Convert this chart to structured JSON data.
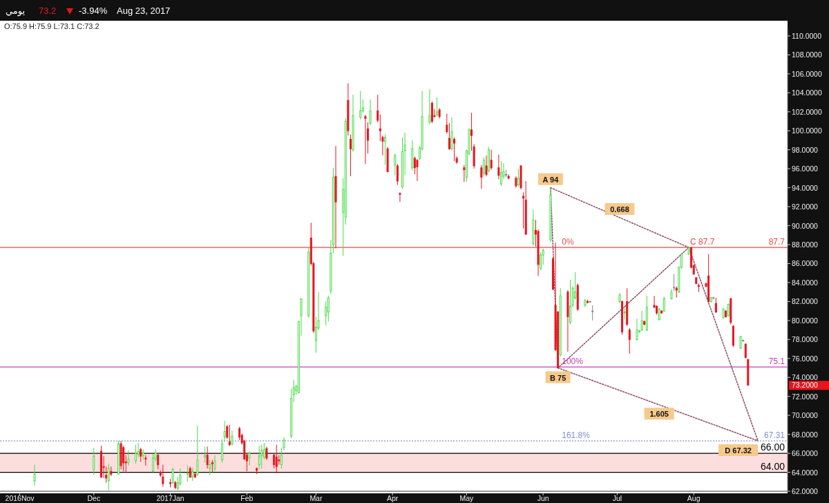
{
  "chart_data": {
    "type": "candlestick",
    "title": "يومي",
    "subtitle": "O:75.9  H:75.9  L:73.1  C:73.2",
    "annotations": [
      "73.2",
      "-3.94%",
      "Aug 23, 2017",
      "73.2000",
      {
        "text": "A 94",
        "x": "2017-06-04",
        "y": 94
      },
      {
        "text": "B 75",
        "x": "2017-06-07",
        "y": 75
      },
      {
        "text": "C 87.7",
        "x": "2017-07-30",
        "y": 87.7
      },
      {
        "text": "D 67.32",
        "x": "2017-08-27",
        "y": 67.32
      },
      {
        "text": "0.668",
        "x": "2017-07-02",
        "y": 90.85
      },
      {
        "text": "1.605",
        "x": "2017-07-18",
        "y": 71.16
      },
      {
        "text": "0%",
        "x": "2017-06-08",
        "y": 87.7
      },
      {
        "text": "100%",
        "x": "2017-06-08",
        "y": 75.1
      },
      {
        "text": "161.8%",
        "x": "2017-06-08",
        "y": 67.31
      }
    ],
    "x": [
      "2016-11-07",
      "2016-12-01",
      "2016-12-04",
      "2016-12-05",
      "2016-12-06",
      "2016-12-07",
      "2016-12-08",
      "2016-12-11",
      "2016-12-12",
      "2016-12-13",
      "2016-12-14",
      "2016-12-15",
      "2016-12-18",
      "2016-12-19",
      "2016-12-20",
      "2016-12-21",
      "2016-12-22",
      "2016-12-25",
      "2016-12-26",
      "2016-12-27",
      "2016-12-28",
      "2016-12-29",
      "2017-01-01",
      "2017-01-02",
      "2017-01-03",
      "2017-01-04",
      "2017-01-05",
      "2017-01-08",
      "2017-01-09",
      "2017-01-10",
      "2017-01-11",
      "2017-01-12",
      "2017-01-15",
      "2017-01-16",
      "2017-01-17",
      "2017-01-18",
      "2017-01-19",
      "2017-01-22",
      "2017-01-23",
      "2017-01-24",
      "2017-01-25",
      "2017-01-26",
      "2017-01-29",
      "2017-01-30",
      "2017-01-31",
      "2017-02-01",
      "2017-02-02",
      "2017-02-05",
      "2017-02-06",
      "2017-02-07",
      "2017-02-08",
      "2017-02-09",
      "2017-02-12",
      "2017-02-13",
      "2017-02-14",
      "2017-02-15",
      "2017-02-16",
      "2017-02-19",
      "2017-02-20",
      "2017-02-21",
      "2017-02-22",
      "2017-02-23",
      "2017-02-26",
      "2017-02-27",
      "2017-02-28",
      "2017-03-01",
      "2017-03-02",
      "2017-03-05",
      "2017-03-06",
      "2017-03-07",
      "2017-03-08",
      "2017-03-09",
      "2017-03-12",
      "2017-03-13",
      "2017-03-14",
      "2017-03-15",
      "2017-03-16",
      "2017-03-19",
      "2017-03-20",
      "2017-03-21",
      "2017-03-22",
      "2017-03-23",
      "2017-03-26",
      "2017-03-27",
      "2017-03-28",
      "2017-03-29",
      "2017-03-30",
      "2017-04-02",
      "2017-04-03",
      "2017-04-04",
      "2017-04-05",
      "2017-04-06",
      "2017-04-09",
      "2017-04-10",
      "2017-04-11",
      "2017-04-12",
      "2017-04-13",
      "2017-04-16",
      "2017-04-17",
      "2017-04-18",
      "2017-04-19",
      "2017-04-20",
      "2017-04-23",
      "2017-04-24",
      "2017-04-25",
      "2017-04-26",
      "2017-04-27",
      "2017-04-30",
      "2017-05-01",
      "2017-05-02",
      "2017-05-03",
      "2017-05-04",
      "2017-05-07",
      "2017-05-08",
      "2017-05-09",
      "2017-05-10",
      "2017-05-11",
      "2017-05-14",
      "2017-05-15",
      "2017-05-16",
      "2017-05-17",
      "2017-05-18",
      "2017-05-21",
      "2017-05-22",
      "2017-05-23",
      "2017-05-24",
      "2017-05-25",
      "2017-05-28",
      "2017-05-29",
      "2017-05-30",
      "2017-05-31",
      "2017-06-01",
      "2017-06-04",
      "2017-06-05",
      "2017-06-06",
      "2017-06-07",
      "2017-06-08",
      "2017-06-11",
      "2017-06-12",
      "2017-06-13",
      "2017-06-14",
      "2017-06-15",
      "2017-06-18",
      "2017-06-19",
      "2017-06-20",
      "2017-06-21",
      "2017-07-02",
      "2017-07-03",
      "2017-07-04",
      "2017-07-05",
      "2017-07-06",
      "2017-07-09",
      "2017-07-10",
      "2017-07-11",
      "2017-07-12",
      "2017-07-13",
      "2017-07-16",
      "2017-07-17",
      "2017-07-18",
      "2017-07-19",
      "2017-07-20",
      "2017-07-23",
      "2017-07-24",
      "2017-07-25",
      "2017-07-26",
      "2017-07-27",
      "2017-07-30",
      "2017-07-31",
      "2017-08-01",
      "2017-08-02",
      "2017-08-03",
      "2017-08-06",
      "2017-08-07",
      "2017-08-08",
      "2017-08-09",
      "2017-08-10",
      "2017-08-13",
      "2017-08-14",
      "2017-08-15",
      "2017-08-16",
      "2017-08-17",
      "2017-08-20",
      "2017-08-21",
      "2017-08-22",
      "2017-08-23"
    ],
    "ohlc": [
      [
        63.1,
        64.8,
        62.6,
        63.8
      ],
      [
        64.3,
        66.6,
        63.7,
        65.7
      ],
      [
        66.2,
        66.8,
        63.4,
        63.5
      ],
      [
        64.6,
        65.7,
        63.4,
        64.5
      ],
      [
        63.7,
        64.6,
        62.9,
        63.4
      ],
      [
        63.1,
        64.9,
        62.1,
        64.4
      ],
      [
        64.1,
        64.6,
        63.6,
        63.8
      ],
      [
        63.8,
        67.3,
        63.8,
        67.0
      ],
      [
        67.0,
        67.3,
        64.3,
        64.7
      ],
      [
        66.6,
        66.8,
        64.1,
        65.0
      ],
      [
        65.1,
        65.8,
        64.0,
        65.0
      ],
      [
        65.0,
        66.3,
        64.7,
        65.4
      ],
      [
        65.2,
        66.9,
        64.9,
        66.0
      ],
      [
        65.9,
        67.1,
        65.6,
        66.2
      ],
      [
        66.4,
        66.6,
        65.1,
        65.7
      ],
      [
        65.8,
        66.4,
        65.3,
        66.1
      ],
      [
        65.5,
        65.8,
        64.7,
        65.4
      ],
      [
        64.1,
        65.9,
        64.0,
        65.5
      ],
      [
        65.4,
        66.4,
        65.1,
        66.1
      ],
      [
        65.8,
        66.0,
        64.3,
        64.8
      ],
      [
        64.0,
        64.2,
        63.5,
        63.7
      ],
      [
        63.5,
        64.8,
        62.5,
        62.8
      ],
      [
        62.9,
        63.3,
        62.4,
        62.8
      ],
      [
        62.9,
        64.5,
        62.8,
        64.3
      ],
      [
        62.9,
        63.1,
        62.2,
        62.4
      ],
      [
        62.3,
        63.5,
        62.1,
        62.9
      ],
      [
        62.8,
        64.4,
        62.6,
        63.7
      ],
      [
        63.8,
        64.7,
        63.0,
        63.9
      ],
      [
        64.4,
        64.6,
        63.4,
        63.5
      ],
      [
        63.5,
        64.5,
        63.1,
        64.1
      ],
      [
        63.8,
        64.0,
        63.4,
        63.5
      ],
      [
        63.8,
        68.9,
        63.6,
        65.3
      ],
      [
        65.6,
        66.7,
        65.0,
        65.8
      ],
      [
        65.8,
        66.7,
        64.4,
        64.8
      ],
      [
        64.4,
        65.3,
        63.7,
        64.8
      ],
      [
        65.0,
        65.3,
        64.0,
        64.9
      ],
      [
        64.4,
        65.8,
        64.1,
        65.2
      ],
      [
        65.3,
        67.5,
        65.0,
        67.0
      ],
      [
        67.7,
        69.4,
        67.2,
        68.3
      ],
      [
        68.8,
        69.0,
        67.5,
        67.7
      ],
      [
        67.2,
        69.0,
        66.8,
        66.9
      ],
      [
        67.0,
        68.4,
        66.8,
        67.8
      ],
      [
        68.6,
        68.8,
        67.4,
        67.7
      ],
      [
        67.9,
        68.1,
        66.9,
        67.1
      ],
      [
        67.3,
        67.4,
        65.3,
        65.4
      ],
      [
        65.8,
        66.0,
        64.1,
        65.2
      ],
      [
        65.5,
        66.2,
        64.7,
        66.0
      ],
      [
        64.4,
        64.5,
        63.8,
        64.2
      ],
      [
        64.8,
        66.8,
        64.3,
        65.7
      ],
      [
        65.8,
        66.9,
        64.4,
        66.3
      ],
      [
        65.6,
        67.1,
        65.4,
        66.4
      ],
      [
        66.5,
        66.7,
        65.3,
        65.5
      ],
      [
        65.8,
        66.0,
        64.4,
        64.8
      ],
      [
        65.6,
        66.9,
        63.9,
        64.6
      ],
      [
        65.3,
        65.8,
        64.8,
        65.2
      ],
      [
        64.8,
        66.6,
        64.4,
        65.8
      ],
      [
        66.6,
        67.7,
        66.3,
        67.4
      ],
      [
        67.8,
        72.8,
        67.6,
        71.8
      ],
      [
        72.2,
        73.7,
        71.4,
        72.9
      ],
      [
        72.6,
        73.1,
        72.2,
        73.1
      ],
      [
        72.4,
        79.9,
        72.3,
        79.9
      ],
      [
        80.5,
        82.3,
        78.4,
        82.3
      ],
      [
        80.5,
        87.7,
        80.3,
        87.2
      ],
      [
        88.7,
        90.3,
        85.8,
        86.0
      ],
      [
        86.0,
        86.2,
        78.7,
        78.9
      ],
      [
        77.9,
        80.4,
        76.6,
        79.3
      ],
      [
        79.2,
        83.0,
        79.0,
        80.0
      ],
      [
        80.5,
        82.0,
        79.5,
        81.4
      ],
      [
        80.9,
        82.6,
        79.9,
        82.4
      ],
      [
        83.1,
        88.5,
        82.8,
        87.1
      ],
      [
        88.0,
        96.1,
        87.1,
        95.1
      ],
      [
        95.2,
        98.4,
        87.6,
        92.5
      ],
      [
        91.4,
        95.0,
        86.8,
        93.8
      ],
      [
        90.9,
        101.3,
        90.1,
        101.0
      ],
      [
        103.2,
        105.0,
        99.5,
        100.0
      ],
      [
        99.1,
        99.6,
        95.2,
        98.1
      ],
      [
        98.0,
        103.8,
        97.8,
        101.6
      ],
      [
        101.4,
        104.2,
        101.2,
        102.1
      ],
      [
        102.1,
        103.3,
        101.9,
        102.4
      ],
      [
        101.5,
        101.7,
        96.5,
        101.3
      ],
      [
        100.2,
        100.9,
        97.6,
        99.0
      ],
      [
        100.8,
        103.3,
        100.6,
        102.1
      ],
      [
        102.1,
        103.8,
        100.9,
        101.1
      ],
      [
        100.2,
        101.7,
        98.9,
        100.0
      ],
      [
        99.3,
        99.5,
        97.4,
        98.9
      ],
      [
        98.9,
        99.6,
        96.4,
        99.3
      ],
      [
        98.1,
        98.3,
        95.6,
        95.7
      ],
      [
        96.4,
        97.6,
        95.3,
        97.4
      ],
      [
        96.3,
        96.5,
        94.3,
        94.7
      ],
      [
        93.4,
        93.5,
        92.5,
        93.3
      ],
      [
        94.1,
        99.3,
        93.9,
        97.8
      ],
      [
        97.9,
        99.8,
        95.3,
        98.5
      ],
      [
        96.1,
        99.0,
        95.8,
        98.1
      ],
      [
        97.1,
        97.3,
        95.4,
        96.1
      ],
      [
        96.9,
        97.0,
        94.7,
        96.2
      ],
      [
        97.1,
        98.4,
        96.9,
        98.2
      ],
      [
        98.1,
        104.2,
        97.9,
        101.5
      ],
      [
        100.9,
        104.4,
        100.7,
        101.6
      ],
      [
        102.9,
        103.1,
        100.8,
        101.0
      ],
      [
        101.6,
        102.3,
        101.4,
        101.5
      ],
      [
        101.7,
        103.5,
        101.5,
        102.0
      ],
      [
        102.2,
        102.4,
        101.3,
        101.5
      ],
      [
        100.6,
        101.8,
        99.7,
        99.9
      ],
      [
        99.2,
        100.8,
        98.0,
        98.1
      ],
      [
        98.1,
        101.4,
        97.9,
        99.9
      ],
      [
        99.1,
        99.3,
        96.8,
        98.7
      ],
      [
        97.1,
        97.3,
        96.5,
        96.7
      ],
      [
        96.1,
        96.4,
        94.6,
        95.9
      ],
      [
        95.1,
        98.0,
        94.6,
        97.9
      ],
      [
        97.6,
        100.3,
        97.4,
        100.1
      ],
      [
        100.1,
        101.9,
        97.9,
        99.5
      ],
      [
        98.3,
        98.6,
        96.0,
        96.3
      ],
      [
        96.1,
        96.4,
        93.9,
        95.1
      ],
      [
        95.5,
        97.2,
        95.2,
        96.9
      ],
      [
        96.3,
        97.4,
        95.2,
        95.4
      ],
      [
        95.8,
        98.3,
        95.6,
        98.0
      ],
      [
        96.9,
        98.0,
        95.9,
        96.1
      ],
      [
        96.1,
        97.5,
        94.9,
        95.3
      ],
      [
        94.4,
        96.8,
        94.2,
        95.6
      ],
      [
        95.2,
        96.6,
        94.9,
        95.7
      ],
      [
        95.4,
        95.9,
        95.1,
        95.4
      ],
      [
        95.2,
        95.4,
        94.9,
        95.0
      ],
      [
        95.0,
        95.2,
        94.0,
        94.2
      ],
      [
        94.3,
        96.0,
        94.1,
        95.0
      ],
      [
        96.3,
        96.4,
        93.8,
        94.0
      ],
      [
        93.1,
        93.5,
        89.7,
        92.9
      ],
      [
        92.7,
        94.7,
        89.0,
        89.1
      ],
      [
        88.1,
        91.7,
        87.9,
        90.6
      ],
      [
        89.5,
        90.6,
        87.8,
        89.1
      ],
      [
        89.4,
        89.6,
        84.7,
        85.9
      ],
      [
        85.5,
        87.2,
        85.3,
        86.9
      ],
      [
        86.9,
        87.6,
        85.9,
        87.4
      ],
      [
        88.5,
        94.0,
        88.3,
        93.2
      ],
      [
        86.5,
        86.7,
        83.2,
        83.3
      ],
      [
        81.6,
        88.2,
        76.8,
        76.9
      ],
      [
        80.9,
        81.0,
        75.0,
        75.0
      ],
      [
        76.4,
        83.4,
        76.2,
        82.6
      ],
      [
        83.0,
        83.2,
        76.7,
        80.4
      ],
      [
        79.8,
        84.3,
        79.6,
        81.5
      ],
      [
        81.6,
        83.6,
        81.4,
        83.4
      ],
      [
        82.4,
        85.1,
        82.2,
        83.0
      ],
      [
        83.7,
        83.9,
        81.0,
        81.2
      ],
      [
        81.6,
        82.3,
        81.4,
        82.1
      ],
      [
        82.0,
        82.2,
        81.8,
        81.9
      ],
      [
        82.0,
        82.1,
        81.9,
        82.0
      ],
      [
        81.0,
        81.6,
        80.0,
        81.0
      ],
      [
        82.0,
        82.9,
        81.8,
        82.7
      ],
      [
        82.0,
        82.1,
        78.5,
        78.8
      ],
      [
        80.8,
        81.4,
        80.1,
        80.9
      ],
      [
        82.0,
        83.4,
        79.4,
        79.6
      ],
      [
        79.0,
        79.2,
        76.5,
        78.0
      ],
      [
        78.0,
        80.2,
        77.9,
        79.0
      ],
      [
        78.8,
        79.0,
        78.7,
        78.9
      ],
      [
        79.0,
        81.0,
        78.9,
        80.0
      ],
      [
        79.9,
        80.0,
        79.5,
        79.6
      ],
      [
        79.0,
        82.6,
        78.9,
        81.4
      ],
      [
        81.6,
        82.6,
        81.3,
        81.4
      ],
      [
        81.5,
        81.6,
        80.6,
        80.8
      ],
      [
        80.1,
        81.3,
        80.0,
        81.2
      ],
      [
        81.0,
        81.1,
        80.7,
        80.8
      ],
      [
        81.0,
        82.5,
        80.9,
        82.3
      ],
      [
        82.3,
        83.3,
        82.2,
        83.0
      ],
      [
        83.5,
        84.9,
        83.1,
        83.5
      ],
      [
        83.4,
        83.6,
        82.4,
        83.2
      ],
      [
        83.0,
        85.7,
        82.9,
        85.6
      ],
      [
        85.6,
        87.1,
        85.5,
        87.0
      ],
      [
        87.0,
        87.7,
        86.9,
        87.7
      ],
      [
        87.7,
        87.7,
        85.5,
        85.6
      ],
      [
        85.8,
        85.9,
        84.8,
        84.9
      ],
      [
        84.5,
        84.6,
        83.8,
        83.9
      ],
      [
        83.7,
        83.9,
        83.0,
        83.6
      ],
      [
        83.9,
        84.0,
        83.5,
        83.6
      ],
      [
        84.7,
        87.0,
        81.9,
        82.0
      ],
      [
        82.0,
        82.5,
        81.9,
        82.4
      ],
      [
        82.4,
        82.5,
        82.3,
        82.4
      ],
      [
        81.8,
        82.4,
        80.8,
        80.9
      ],
      [
        80.3,
        81.3,
        80.2,
        81.2
      ],
      [
        81.0,
        81.1,
        80.3,
        80.4
      ],
      [
        80.5,
        81.8,
        80.4,
        81.7
      ],
      [
        82.3,
        82.4,
        79.6,
        79.8
      ],
      [
        79.4,
        79.5,
        77.2,
        77.4
      ],
      [
        77.1,
        78.4,
        77.0,
        78.3
      ],
      [
        77.9,
        78.0,
        77.8,
        77.9
      ],
      [
        77.5,
        77.6,
        76.0,
        76.1
      ],
      [
        75.9,
        75.9,
        73.1,
        73.2
      ]
    ],
    "series": [
      {
        "type": "line",
        "color": "#8e4a62",
        "line_style": "dotted",
        "x": [
          "2017-06-04",
          "2017-06-07",
          "2017-07-30",
          "2017-08-27"
        ],
        "values": [
          94,
          75,
          87.7,
          67.32
        ]
      },
      {
        "type": "line",
        "color": "#8e4a62",
        "line_style": "dotted",
        "x": [
          "2017-06-04",
          "2017-07-30"
        ],
        "values": [
          94,
          87.7
        ]
      },
      {
        "type": "line",
        "color": "#8e4a62",
        "line_style": "dotted",
        "x": [
          "2017-06-07",
          "2017-08-27"
        ],
        "values": [
          75,
          67.32
        ]
      }
    ],
    "ref_lines": [
      {
        "axis": "y",
        "value": 87.7,
        "label": "87.7",
        "color": "#f04848"
      },
      {
        "axis": "y",
        "value": 75.1,
        "label": "75.1",
        "color": "#c040b0"
      },
      {
        "axis": "y",
        "value": 67.31,
        "label": "67.31",
        "color": "#8090d0",
        "line_style": "dotted"
      },
      {
        "axis": "y",
        "value": 66,
        "label": "66.00",
        "color": "#000000"
      },
      {
        "axis": "y",
        "value": 64,
        "label": "64.00",
        "color": "#000000"
      }
    ],
    "bands": [
      {
        "axis": "y",
        "from": 64,
        "to": 66,
        "color": "#fddede"
      }
    ],
    "xlim": [
      "2016-10-24",
      "2017-09-08"
    ],
    "xticks": [
      {
        "value": "2016-11-01",
        "label": "2016Nov"
      },
      {
        "value": "2016-12-01",
        "label": "Dec"
      },
      {
        "value": "2017-01-01",
        "label": "2017Jan"
      },
      {
        "value": "2017-02-01",
        "label": "Feb"
      },
      {
        "value": "2017-03-01",
        "label": "Mar"
      },
      {
        "value": "2017-04-01",
        "label": "Apr"
      },
      {
        "value": "2017-05-01",
        "label": "May"
      },
      {
        "value": "2017-06-01",
        "label": "Jun"
      },
      {
        "value": "2017-07-01",
        "label": "Jul"
      },
      {
        "value": "2017-08-01",
        "label": "Aug"
      }
    ],
    "ylim": [
      62,
      110.8
    ],
    "yticks": [
      {
        "value": 62,
        "label": "62.0000"
      },
      {
        "value": 64,
        "label": "64.0000"
      },
      {
        "value": 66,
        "label": "66.0000"
      },
      {
        "value": 68,
        "label": "68.0000"
      },
      {
        "value": 70,
        "label": "70.0000"
      },
      {
        "value": 72,
        "label": "72.0000"
      },
      {
        "value": 74,
        "label": "74.0000"
      },
      {
        "value": 76,
        "label": "76.0000"
      },
      {
        "value": 78,
        "label": "78.0000"
      },
      {
        "value": 80,
        "label": "80.0000"
      },
      {
        "value": 82,
        "label": "82.0000"
      },
      {
        "value": 84,
        "label": "84.0000"
      },
      {
        "value": 86,
        "label": "86.0000"
      },
      {
        "value": 88,
        "label": "88.0000"
      },
      {
        "value": 90,
        "label": "90.0000"
      },
      {
        "value": 92,
        "label": "92.0000"
      },
      {
        "value": 94,
        "label": "94.0000"
      },
      {
        "value": 96,
        "label": "96.0000"
      },
      {
        "value": 98,
        "label": "98.0000"
      },
      {
        "value": 100,
        "label": "100.0000"
      },
      {
        "value": 102,
        "label": "102.0000"
      },
      {
        "value": 104,
        "label": "104.0000"
      },
      {
        "value": 106,
        "label": "106.0000"
      },
      {
        "value": 108,
        "label": "108.0000"
      },
      {
        "value": 110,
        "label": "110.0000"
      }
    ],
    "grid": false
  }
}
